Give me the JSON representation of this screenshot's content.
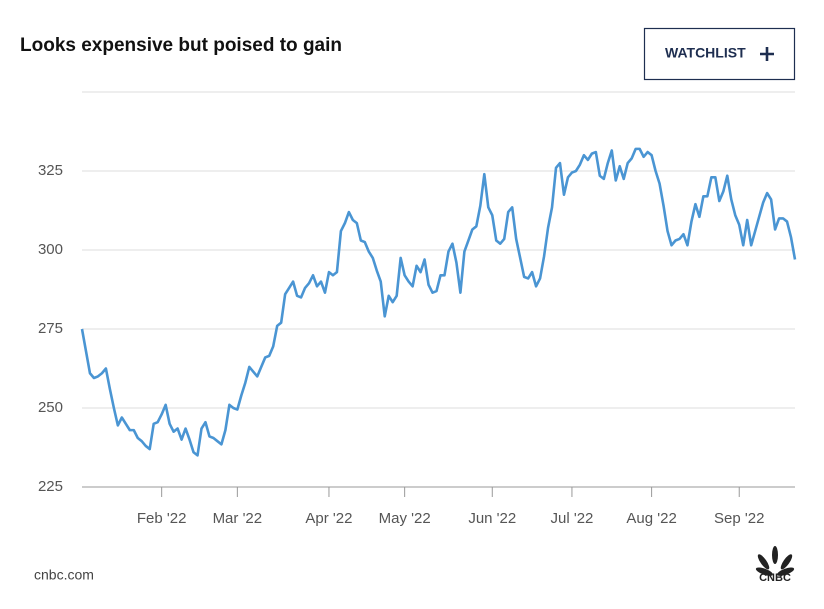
{
  "chart_data": {
    "type": "line",
    "title": "Looks expensive but poised to gain",
    "color": "#4a95d3",
    "xlim": [
      0,
      179
    ],
    "ylim": [
      225,
      350
    ],
    "yticks": [
      225,
      250,
      275,
      300,
      325
    ],
    "xticks": [
      {
        "value": 20,
        "label": "Feb '22"
      },
      {
        "value": 39,
        "label": "Mar '22"
      },
      {
        "value": 62,
        "label": "Apr '22"
      },
      {
        "value": 81,
        "label": "May '22"
      },
      {
        "value": 103,
        "label": "Jun '22"
      },
      {
        "value": 123,
        "label": "Jul '22"
      },
      {
        "value": 143,
        "label": "Aug '22"
      },
      {
        "value": 165,
        "label": "Sep '22"
      }
    ],
    "grid": true,
    "x": [
      0,
      1,
      2,
      3,
      4,
      5,
      6,
      7,
      8,
      9,
      10,
      11,
      12,
      13,
      14,
      15,
      16,
      17,
      18,
      19,
      20,
      21,
      22,
      23,
      24,
      25,
      26,
      27,
      28,
      29,
      30,
      31,
      32,
      33,
      34,
      35,
      36,
      37,
      38,
      39,
      40,
      41,
      42,
      43,
      44,
      45,
      46,
      47,
      48,
      49,
      50,
      51,
      52,
      53,
      54,
      55,
      56,
      57,
      58,
      59,
      60,
      61,
      62,
      63,
      64,
      65,
      66,
      67,
      68,
      69,
      70,
      71,
      72,
      73,
      74,
      75,
      76,
      77,
      78,
      79,
      80,
      81,
      82,
      83,
      84,
      85,
      86,
      87,
      88,
      89,
      90,
      91,
      92,
      93,
      94,
      95,
      96,
      97,
      98,
      99,
      100,
      101,
      102,
      103,
      104,
      105,
      106,
      107,
      108,
      109,
      110,
      111,
      112,
      113,
      114,
      115,
      116,
      117,
      118,
      119,
      120,
      121,
      122,
      123,
      124,
      125,
      126,
      127,
      128,
      129,
      130,
      131,
      132,
      133,
      134,
      135,
      136,
      137,
      138,
      139,
      140,
      141,
      142,
      143,
      144,
      145,
      146,
      147,
      148,
      149,
      150,
      151,
      152,
      153,
      154,
      155,
      156,
      157,
      158,
      159,
      160,
      161,
      162,
      163,
      164,
      165,
      166,
      167,
      168,
      169,
      170,
      171,
      172,
      173,
      174,
      175,
      176,
      177,
      178,
      179
    ],
    "values": [
      275,
      268,
      261,
      259.5,
      260,
      261,
      262.5,
      256,
      250,
      244.5,
      247,
      245,
      243,
      243,
      240.5,
      239.5,
      238,
      237,
      245,
      245.5,
      248,
      251,
      245,
      242.5,
      243.5,
      240,
      243.5,
      240,
      236,
      235,
      243.5,
      245.5,
      241,
      240.5,
      239.5,
      238.5,
      243,
      251,
      250,
      249.5,
      254,
      258,
      263,
      261.5,
      260,
      263,
      266,
      266.5,
      269.5,
      276,
      277,
      286,
      288,
      290,
      285.5,
      285,
      288,
      289.5,
      292,
      288.5,
      290,
      286.5,
      293,
      292,
      293,
      306,
      308.5,
      312,
      309.5,
      308.5,
      303,
      302.5,
      299.5,
      297.5,
      293.5,
      290,
      279,
      285.5,
      283.5,
      285.5,
      297.5,
      292,
      290,
      288.5,
      295,
      293,
      297,
      289,
      286.5,
      287,
      292,
      292,
      299.5,
      302,
      296,
      286.5,
      299.5,
      303,
      306.5,
      307.5,
      314,
      324,
      313.5,
      311,
      303,
      302,
      303.5,
      312,
      313.5,
      303.5,
      297.5,
      291.5,
      291,
      293,
      288.5,
      291,
      298,
      307,
      313.5,
      326,
      327.5,
      317.5,
      323,
      324.5,
      325,
      327,
      330,
      328.5,
      330.5,
      331,
      323.5,
      322.5,
      327.5,
      331.5,
      322,
      326.5,
      322.5,
      327.5,
      329,
      332,
      332,
      329.5,
      331,
      330,
      325,
      321,
      314,
      306,
      301.5,
      303,
      303.5,
      305,
      301.5,
      309,
      314.5,
      310.5,
      317,
      317,
      323,
      323,
      315.5,
      318.5,
      323.5,
      316,
      311,
      308,
      301.5,
      309.5,
      301.5,
      306,
      310.5,
      315,
      318,
      316,
      306.5,
      310,
      310,
      309,
      304,
      297
    ]
  },
  "header": {
    "button": "WATCHLIST"
  },
  "footer": {
    "source": "cnbc.com",
    "logo": "CNBC"
  }
}
